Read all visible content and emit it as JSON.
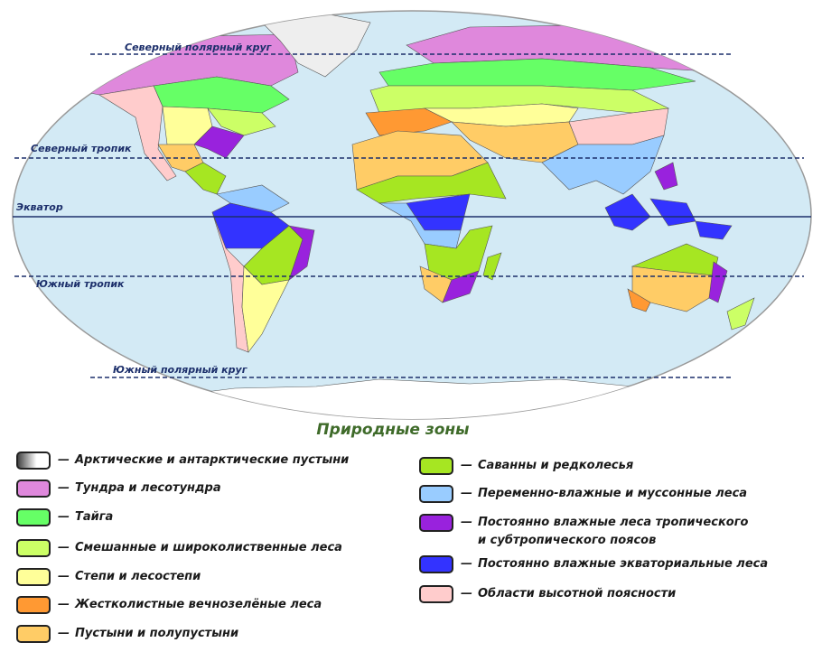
{
  "map": {
    "latitudes": {
      "arctic_circle": "Северный полярный круг",
      "tropic_cancer": "Северный тропик",
      "equator": "Экватор",
      "tropic_capricorn": "Южный тропик",
      "antarctic_circle": "Южный полярный круг"
    },
    "ocean_color": "#d3eaf5"
  },
  "legend": {
    "title": "Природные зоны",
    "dash": "—",
    "items": [
      {
        "key": "arctic",
        "label": "Арктические и антарктические пустыни",
        "color": "linear-gradient(90deg,#444,#fff 60%)"
      },
      {
        "key": "tundra",
        "label": "Тундра и лесотундра",
        "color": "#df88dc"
      },
      {
        "key": "taiga",
        "label": "Тайга",
        "color": "#66ff66"
      },
      {
        "key": "mixed",
        "label": "Смешанные и широколиственные леса",
        "color": "#ccff66"
      },
      {
        "key": "steppe",
        "label": "Степи и лесостепи",
        "color": "#ffff99"
      },
      {
        "key": "hardleaf",
        "label": "Жестколистные вечнозелёные леса",
        "color": "#ff9933"
      },
      {
        "key": "desert",
        "label": "Пустыни и полупустыни",
        "color": "#ffcc66"
      },
      {
        "key": "savanna",
        "label": "Саванны и редколесья",
        "color": "#a6e622"
      },
      {
        "key": "monsoon",
        "label": "Переменно-влажные и муссонные леса",
        "color": "#99ccff"
      },
      {
        "key": "subtropical",
        "label": "Постоянно влажные леса тропического",
        "label2": "и субтропического поясов",
        "color": "#9922dd"
      },
      {
        "key": "equatorial",
        "label": "Постоянно влажные экваториальные леса",
        "color": "#3333ff"
      },
      {
        "key": "highland",
        "label": "Области высотной поясности",
        "color": "#ffcccc"
      }
    ]
  }
}
